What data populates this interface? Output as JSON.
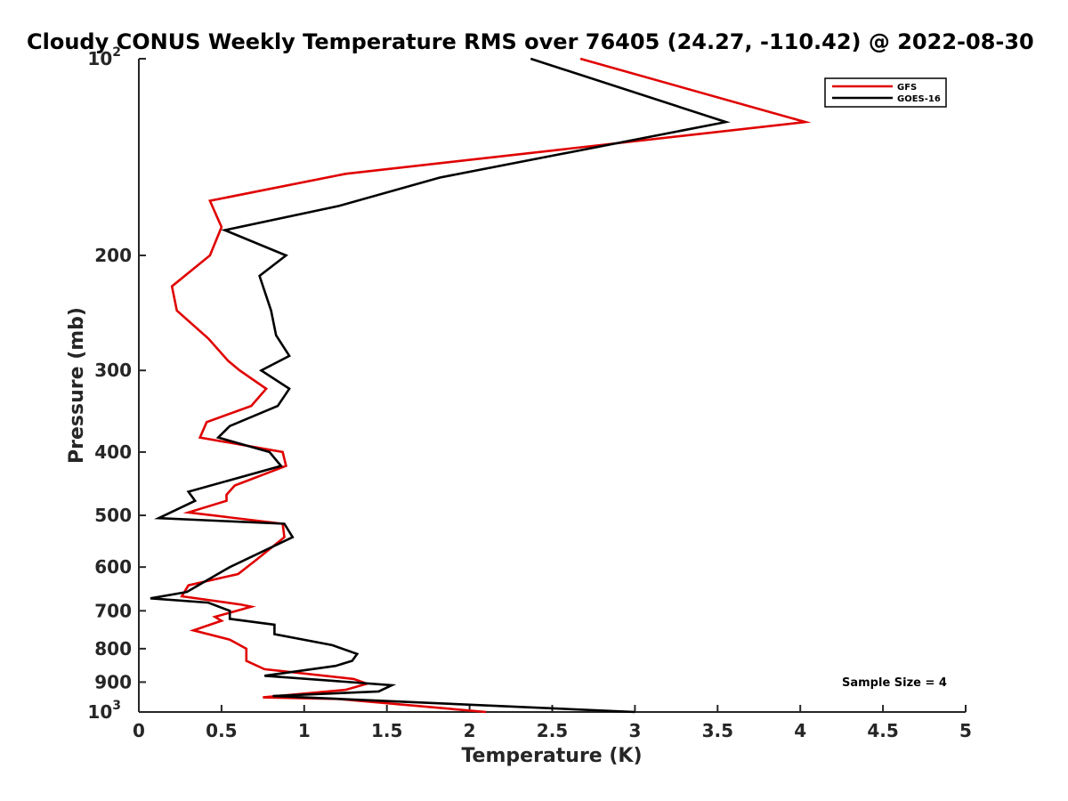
{
  "chart_data": {
    "type": "line",
    "title": "Cloudy CONUS Weekly Temperature RMS over 76405 (24.27, -110.42) @ 2022-08-30",
    "xlabel": "Temperature (K)",
    "ylabel": "Pressure (mb)",
    "xlim": [
      0,
      5
    ],
    "ylim": [
      100,
      1000
    ],
    "yscale": "log",
    "y_reversed": true,
    "xticks": [
      0,
      0.5,
      1,
      1.5,
      2,
      2.5,
      3,
      3.5,
      4,
      4.5,
      5
    ],
    "xtick_labels": [
      "0",
      "0.5",
      "1",
      "1.5",
      "2",
      "2.5",
      "3",
      "3.5",
      "4",
      "4.5",
      "5"
    ],
    "yticks": [
      100,
      200,
      300,
      400,
      500,
      600,
      700,
      800,
      900,
      1000
    ],
    "ytick_labels": [
      "10^2",
      "200",
      "300",
      "400",
      "500",
      "600",
      "700",
      "800",
      "900",
      "10^3"
    ],
    "legend_position": "top-right",
    "annotation": "Sample Size = 4",
    "series": [
      {
        "name": "GFS",
        "color": "#e00000",
        "points": [
          [
            2.67,
            100
          ],
          [
            4.03,
            125
          ],
          [
            1.25,
            150
          ],
          [
            0.43,
            165
          ],
          [
            0.5,
            181
          ],
          [
            0.43,
            200
          ],
          [
            0.2,
            223
          ],
          [
            0.23,
            243
          ],
          [
            0.42,
            268
          ],
          [
            0.54,
            290
          ],
          [
            0.61,
            300
          ],
          [
            0.77,
            320
          ],
          [
            0.68,
            340
          ],
          [
            0.41,
            360
          ],
          [
            0.37,
            380
          ],
          [
            0.87,
            400
          ],
          [
            0.89,
            420
          ],
          [
            0.58,
            450
          ],
          [
            0.53,
            465
          ],
          [
            0.53,
            475
          ],
          [
            0.3,
            495
          ],
          [
            0.87,
            515
          ],
          [
            0.88,
            540
          ],
          [
            0.71,
            585
          ],
          [
            0.6,
            615
          ],
          [
            0.3,
            640
          ],
          [
            0.26,
            665
          ],
          [
            0.62,
            685
          ],
          [
            0.68,
            690
          ],
          [
            0.46,
            715
          ],
          [
            0.5,
            725
          ],
          [
            0.33,
            750
          ],
          [
            0.55,
            775
          ],
          [
            0.65,
            800
          ],
          [
            0.65,
            835
          ],
          [
            0.76,
            860
          ],
          [
            1.3,
            890
          ],
          [
            1.38,
            905
          ],
          [
            1.25,
            925
          ],
          [
            0.75,
            950
          ],
          [
            1.2,
            955
          ],
          [
            2.1,
            1000
          ]
        ]
      },
      {
        "name": "GOES-16",
        "color": "#000000",
        "points": [
          [
            2.37,
            100
          ],
          [
            3.55,
            125
          ],
          [
            1.82,
            152
          ],
          [
            1.21,
            168
          ],
          [
            0.52,
            183
          ],
          [
            0.89,
            200
          ],
          [
            0.73,
            215
          ],
          [
            0.8,
            243
          ],
          [
            0.83,
            265
          ],
          [
            0.91,
            285
          ],
          [
            0.74,
            300
          ],
          [
            0.91,
            320
          ],
          [
            0.84,
            340
          ],
          [
            0.55,
            365
          ],
          [
            0.48,
            380
          ],
          [
            0.79,
            400
          ],
          [
            0.86,
            420
          ],
          [
            0.3,
            460
          ],
          [
            0.34,
            475
          ],
          [
            0.12,
            505
          ],
          [
            0.88,
            515
          ],
          [
            0.93,
            540
          ],
          [
            0.55,
            600
          ],
          [
            0.29,
            655
          ],
          [
            0.07,
            670
          ],
          [
            0.42,
            680
          ],
          [
            0.55,
            700
          ],
          [
            0.55,
            720
          ],
          [
            0.82,
            735
          ],
          [
            0.82,
            760
          ],
          [
            1.17,
            790
          ],
          [
            1.32,
            815
          ],
          [
            1.29,
            835
          ],
          [
            1.19,
            850
          ],
          [
            0.76,
            880
          ],
          [
            1.53,
            910
          ],
          [
            1.45,
            930
          ],
          [
            0.81,
            945
          ],
          [
            3.0,
            1000
          ]
        ]
      }
    ]
  }
}
